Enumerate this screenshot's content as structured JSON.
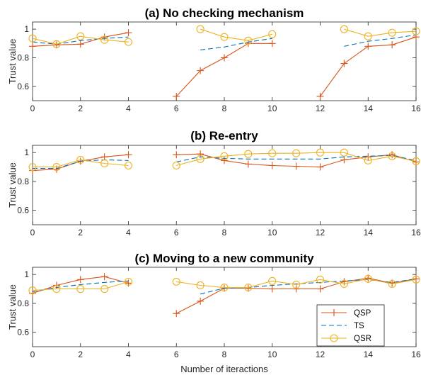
{
  "chart_data": [
    {
      "type": "line",
      "title": "(a) No checking mechanism",
      "ylabel": "Trust value",
      "xlabel": "",
      "xlim": [
        0,
        16
      ],
      "ylim": [
        0.5,
        1.05
      ],
      "xticks": [
        0,
        2,
        4,
        6,
        8,
        10,
        12,
        14,
        16
      ],
      "yticks": [
        0.6,
        0.8,
        1
      ],
      "series": [
        {
          "name": "QSP",
          "color": "#D95319",
          "marker": "plus",
          "dash": "solid",
          "segments": [
            {
              "x": [
                0,
                1,
                2,
                3,
                4
              ],
              "y": [
                0.88,
                0.89,
                0.895,
                0.945,
                0.975
              ]
            },
            {
              "x": [
                6,
                7,
                8,
                9,
                10
              ],
              "y": [
                0.53,
                0.71,
                0.8,
                0.9,
                0.9
              ]
            },
            {
              "x": [
                12,
                13,
                14,
                15,
                16
              ],
              "y": [
                0.53,
                0.76,
                0.88,
                0.89,
                0.945
              ]
            }
          ]
        },
        {
          "name": "TS",
          "color": "#0072BD",
          "marker": "none",
          "dash": "dashed",
          "segments": [
            {
              "x": [
                0,
                1,
                2,
                3,
                4
              ],
              "y": [
                0.91,
                0.895,
                0.92,
                0.935,
                0.945
              ]
            },
            {
              "x": [
                7,
                8,
                9,
                10
              ],
              "y": [
                0.855,
                0.875,
                0.91,
                0.935
              ]
            },
            {
              "x": [
                13,
                14,
                15,
                16
              ],
              "y": [
                0.88,
                0.915,
                0.935,
                0.96
              ]
            }
          ]
        },
        {
          "name": "QSR",
          "color": "#EDB120",
          "marker": "circle",
          "dash": "solid",
          "segments": [
            {
              "x": [
                0,
                1,
                2,
                3,
                4
              ],
              "y": [
                0.935,
                0.895,
                0.95,
                0.925,
                0.91
              ]
            },
            {
              "x": [
                7,
                8,
                9,
                10
              ],
              "y": [
                1.0,
                0.945,
                0.92,
                0.965
              ]
            },
            {
              "x": [
                13,
                14,
                15,
                16
              ],
              "y": [
                1.0,
                0.95,
                0.975,
                0.985
              ]
            }
          ]
        }
      ]
    },
    {
      "type": "line",
      "title": "(b) Re-entry",
      "ylabel": "Trust value",
      "xlabel": "",
      "xlim": [
        0,
        16
      ],
      "ylim": [
        0.5,
        1.05
      ],
      "xticks": [
        0,
        2,
        4,
        6,
        8,
        10,
        12,
        14,
        16
      ],
      "yticks": [
        0.6,
        0.8,
        1
      ],
      "series": [
        {
          "name": "QSP",
          "color": "#D95319",
          "marker": "plus",
          "dash": "solid",
          "segments": [
            {
              "x": [
                0,
                1,
                2,
                3,
                4
              ],
              "y": [
                0.875,
                0.885,
                0.94,
                0.97,
                0.985
              ]
            },
            {
              "x": [
                6,
                7,
                8,
                9,
                10,
                11,
                12,
                13,
                14,
                15,
                16
              ],
              "y": [
                0.985,
                0.99,
                0.945,
                0.92,
                0.91,
                0.905,
                0.9,
                0.95,
                0.97,
                0.985,
                0.935
              ]
            }
          ]
        },
        {
          "name": "TS",
          "color": "#0072BD",
          "marker": "none",
          "dash": "dashed",
          "segments": [
            {
              "x": [
                0,
                1,
                2,
                3,
                4
              ],
              "y": [
                0.89,
                0.89,
                0.94,
                0.95,
                0.945
              ]
            },
            {
              "x": [
                6,
                7,
                8,
                9,
                10,
                11,
                12,
                13,
                14,
                15,
                16
              ],
              "y": [
                0.935,
                0.97,
                0.96,
                0.955,
                0.955,
                0.955,
                0.955,
                0.97,
                0.975,
                0.98,
                0.945
              ]
            }
          ]
        },
        {
          "name": "QSR",
          "color": "#EDB120",
          "marker": "circle",
          "dash": "solid",
          "segments": [
            {
              "x": [
                0,
                1,
                2,
                3,
                4
              ],
              "y": [
                0.9,
                0.9,
                0.95,
                0.925,
                0.91
              ]
            },
            {
              "x": [
                6,
                7,
                8,
                9,
                10,
                11,
                12,
                13,
                14,
                15,
                16
              ],
              "y": [
                0.91,
                0.955,
                0.975,
                0.99,
                0.995,
                0.995,
                1.0,
                1.0,
                0.945,
                0.975,
                0.94
              ]
            }
          ]
        }
      ]
    },
    {
      "type": "line",
      "title": "(c) Moving to a new community",
      "ylabel": "Trust value",
      "xlabel": "Number of iteractions",
      "xlim": [
        0,
        16
      ],
      "ylim": [
        0.5,
        1.05
      ],
      "xticks": [
        0,
        2,
        4,
        6,
        8,
        10,
        12,
        14,
        16
      ],
      "yticks": [
        0.6,
        0.8,
        1
      ],
      "legend": {
        "location": "bottom-right",
        "entries": [
          "QSP",
          "TS",
          "QSR"
        ]
      },
      "series": [
        {
          "name": "QSP",
          "color": "#D95319",
          "marker": "plus",
          "dash": "solid",
          "segments": [
            {
              "x": [
                0,
                1,
                2,
                3,
                4
              ],
              "y": [
                0.87,
                0.925,
                0.965,
                0.985,
                0.94
              ]
            },
            {
              "x": [
                6,
                7,
                8,
                9,
                10,
                11,
                12,
                13,
                14,
                15,
                16
              ],
              "y": [
                0.73,
                0.815,
                0.905,
                0.905,
                0.9,
                0.9,
                0.9,
                0.95,
                0.975,
                0.94,
                0.97
              ]
            }
          ]
        },
        {
          "name": "TS",
          "color": "#0072BD",
          "marker": "none",
          "dash": "dashed",
          "segments": [
            {
              "x": [
                0,
                1,
                2,
                3,
                4
              ],
              "y": [
                0.88,
                0.91,
                0.93,
                0.945,
                0.955
              ]
            },
            {
              "x": [
                7,
                8,
                9,
                10,
                11,
                12,
                13,
                14,
                15,
                16
              ],
              "y": [
                0.865,
                0.905,
                0.91,
                0.925,
                0.935,
                0.945,
                0.955,
                0.965,
                0.945,
                0.97
              ]
            }
          ]
        },
        {
          "name": "QSR",
          "color": "#EDB120",
          "marker": "circle",
          "dash": "solid",
          "segments": [
            {
              "x": [
                0,
                1,
                2,
                3,
                4
              ],
              "y": [
                0.89,
                0.9,
                0.9,
                0.9,
                0.95
              ]
            },
            {
              "x": [
                6,
                7,
                8,
                9,
                10,
                11,
                12,
                13,
                14,
                15,
                16
              ],
              "y": [
                0.95,
                0.925,
                0.91,
                0.91,
                0.955,
                0.93,
                0.965,
                0.935,
                0.97,
                0.935,
                0.965
              ]
            }
          ]
        }
      ]
    }
  ]
}
